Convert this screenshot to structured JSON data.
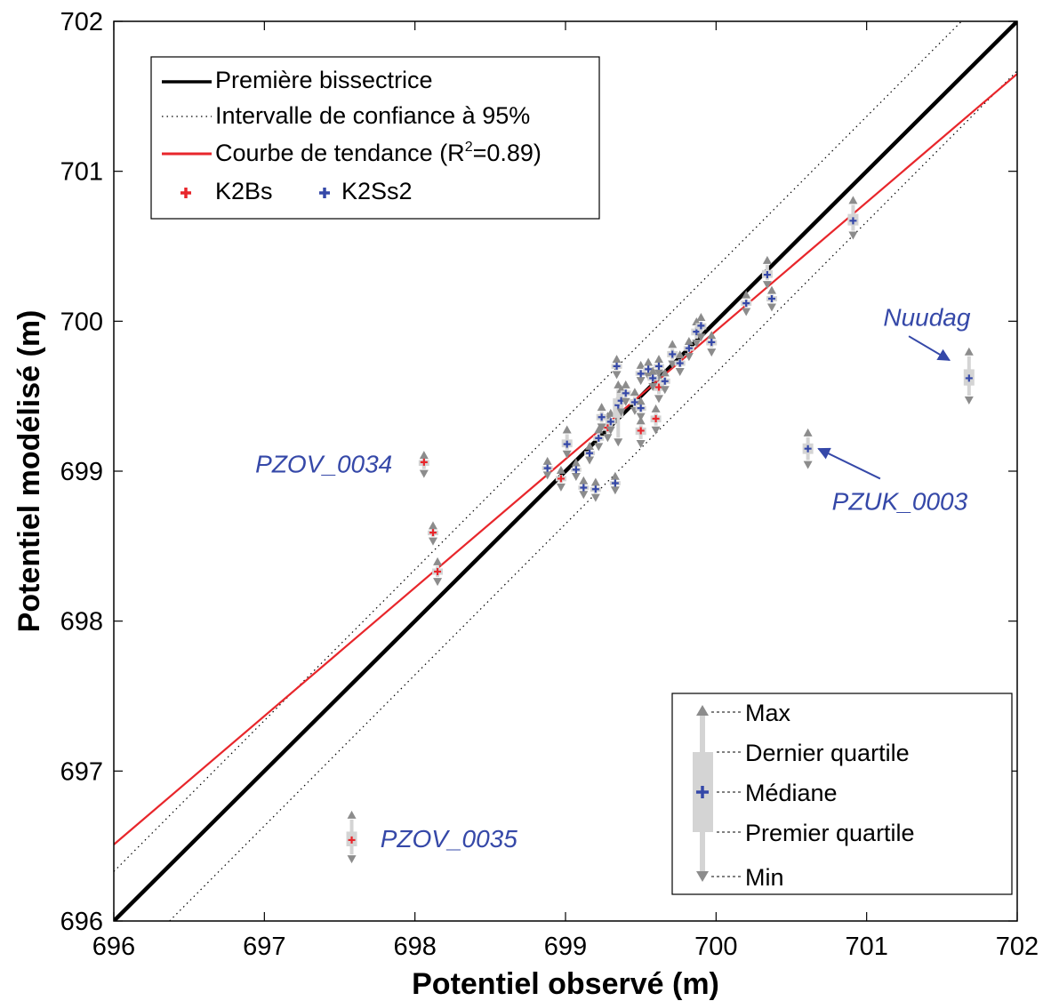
{
  "chart_data": {
    "type": "scatter",
    "xlabel": "Potentiel observé (m)",
    "ylabel": "Potentiel modélisé (m)",
    "xlim": [
      696,
      702
    ],
    "ylim": [
      696,
      702
    ],
    "x_ticks": [
      "696",
      "697",
      "698",
      "699",
      "700",
      "701",
      "702"
    ],
    "y_ticks": [
      "696",
      "697",
      "698",
      "699",
      "700",
      "701",
      "702"
    ],
    "grid": false,
    "legend_position": "top-left",
    "legend": {
      "bisector": "Première bissectrice",
      "confidence": "Intervalle de confiance à 95%",
      "trend": "Courbe de tendance (R",
      "trend_sup": "2",
      "trend_end": "=0.89)",
      "k2bs": "K2Bs",
      "k2ss2": "K2Ss2"
    },
    "box_legend": {
      "max": "Max",
      "q3": "Dernier quartile",
      "median": "Médiane",
      "q1": "Premier quartile",
      "min": "Min"
    },
    "lines": {
      "bisector": [
        [
          696,
          696
        ],
        [
          702,
          702
        ]
      ],
      "ci_upper": [
        [
          696,
          696.33
        ],
        [
          701.63,
          702
        ]
      ],
      "ci_lower": [
        [
          696.37,
          696
        ],
        [
          702,
          701.67
        ]
      ],
      "trend": [
        [
          696,
          696.51
        ],
        [
          702,
          701.65
        ]
      ]
    },
    "colors": {
      "bisector": "#000000",
      "trend": "#e8262b",
      "k2bs": "#e8262b",
      "k2ss2": "#3548a8",
      "whisker": "#8c8c8c",
      "box": "#d4d4d4",
      "annotation": "#3548a8"
    },
    "series": [
      {
        "name": "K2Bs",
        "points": [
          [
            698.06,
            699.06,
            698.99,
            699.1
          ],
          [
            698.12,
            698.59,
            698.54,
            698.63
          ],
          [
            698.15,
            698.33,
            698.27,
            698.39
          ],
          [
            697.58,
            696.54,
            696.42,
            696.7
          ],
          [
            698.97,
            698.95,
            698.9,
            699.0
          ],
          [
            699.28,
            699.29,
            699.23,
            699.36
          ],
          [
            699.5,
            699.27,
            699.19,
            699.33
          ],
          [
            699.6,
            699.35,
            699.28,
            699.41
          ],
          [
            699.62,
            699.56,
            699.49,
            699.62
          ]
        ]
      },
      {
        "name": "K2Ss2",
        "points": [
          [
            698.88,
            699.02,
            698.98,
            699.06
          ],
          [
            699.01,
            699.18,
            699.12,
            699.27
          ],
          [
            699.07,
            699.01,
            698.97,
            699.05
          ],
          [
            699.12,
            698.89,
            698.85,
            698.93
          ],
          [
            699.16,
            699.12,
            699.08,
            699.16
          ],
          [
            699.2,
            698.88,
            698.83,
            698.92
          ],
          [
            699.22,
            699.22,
            699.17,
            699.27
          ],
          [
            699.24,
            699.36,
            699.3,
            699.42
          ],
          [
            699.3,
            699.33,
            699.28,
            699.38
          ],
          [
            699.33,
            698.92,
            698.88,
            698.96
          ],
          [
            699.34,
            699.7,
            699.65,
            699.74
          ],
          [
            699.35,
            699.44,
            699.2,
            699.57
          ],
          [
            699.37,
            699.47,
            699.4,
            699.54
          ],
          [
            699.4,
            699.52,
            699.47,
            699.57
          ],
          [
            699.46,
            699.46,
            699.41,
            699.52
          ],
          [
            699.5,
            699.42,
            699.37,
            699.46
          ],
          [
            699.5,
            699.65,
            699.61,
            699.7
          ],
          [
            699.55,
            699.68,
            699.64,
            699.72
          ],
          [
            699.58,
            699.62,
            699.57,
            699.66
          ],
          [
            699.62,
            699.7,
            699.66,
            699.74
          ],
          [
            699.66,
            699.6,
            699.55,
            699.65
          ],
          [
            699.71,
            699.78,
            699.72,
            699.84
          ],
          [
            699.76,
            699.72,
            699.67,
            699.77
          ],
          [
            699.82,
            699.82,
            699.77,
            699.86
          ],
          [
            699.87,
            699.93,
            699.86,
            699.99
          ],
          [
            699.9,
            699.97,
            699.9,
            700.02
          ],
          [
            699.97,
            699.86,
            699.8,
            699.9
          ],
          [
            700.2,
            700.12,
            700.07,
            700.17
          ],
          [
            700.34,
            700.31,
            700.25,
            700.4
          ],
          [
            700.37,
            700.15,
            700.1,
            700.2
          ],
          [
            700.91,
            700.67,
            700.58,
            700.8
          ],
          [
            700.61,
            699.15,
            699.05,
            699.25
          ],
          [
            701.68,
            699.62,
            699.48,
            699.79
          ]
        ]
      }
    ],
    "annotations": [
      {
        "text": "PZOV_0034",
        "pos": [
          697.85,
          699.05
        ],
        "anchor": "end"
      },
      {
        "text": "PZOV_0035",
        "pos": [
          697.77,
          696.55
        ],
        "anchor": "start"
      },
      {
        "text": "Nuudag",
        "pos": [
          701.4,
          700.03
        ],
        "anchor": "middle",
        "arrow_from": [
          701.28,
          699.9
        ],
        "arrow_to": [
          701.55,
          699.74
        ]
      },
      {
        "text": "PZUK_0003",
        "pos": [
          701.22,
          698.8
        ],
        "anchor": "middle",
        "arrow_from": [
          701.09,
          698.95
        ],
        "arrow_to": [
          700.68,
          699.15
        ]
      }
    ]
  }
}
